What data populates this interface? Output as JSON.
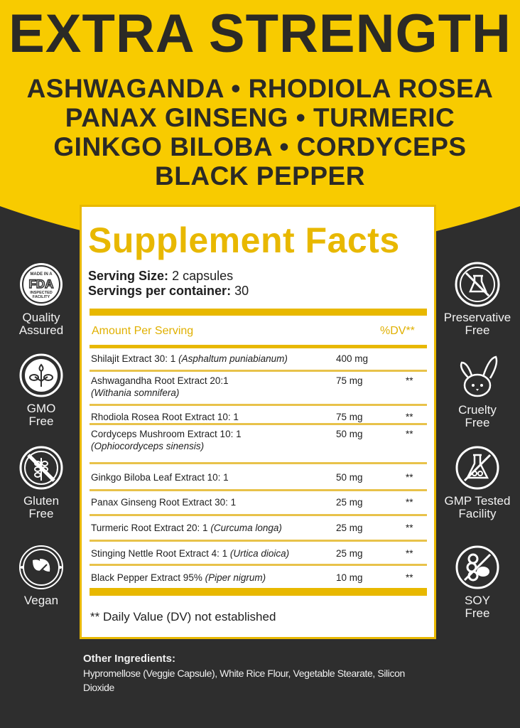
{
  "colors": {
    "yellow": "#f8cb00",
    "dark": "#2e2e2e",
    "accent": "#e8b800"
  },
  "header": {
    "title": "EXTRA STRENGTH",
    "lines": [
      "ASHWAGANDA • RHODIOLA ROSEA",
      "PANAX GINSENG • TURMERIC",
      "GINKGO BILOBA • CORDYCEPS",
      "BLACK PEPPER"
    ]
  },
  "facts": {
    "title": "Supplement Facts",
    "serving_size_label": "Serving Size:",
    "serving_size": "2 capsules",
    "servings_label": "Servings per container:",
    "servings": "30",
    "amount_header": "Amount Per Serving",
    "dv_header": "%DV**",
    "rows": [
      {
        "name": "Shilajit Extract 30: 1",
        "latin": "(Asphaltum puniabianum)",
        "amount": "400 mg",
        "dv": ""
      },
      {
        "name": "Ashwagandha Root Extract 20:1",
        "latin": "(Withania somnifera)",
        "amount": "75 mg",
        "dv": "**"
      },
      {
        "name": "Rhodiola Rosea Root Extract 10: 1",
        "latin": "",
        "amount": "75 mg",
        "dv": "**"
      },
      {
        "name": "Cordyceps Mushroom Extract 10: 1",
        "latin": "(Ophiocordyceps sinensis)",
        "amount": "50 mg",
        "dv": "**"
      },
      {
        "name": "Ginkgo Biloba Leaf Extract 10: 1",
        "latin": "",
        "amount": "50 mg",
        "dv": "**"
      },
      {
        "name": "Panax Ginseng Root Extract 30: 1",
        "latin": "",
        "amount": "25 mg",
        "dv": "**"
      },
      {
        "name": "Turmeric Root Extract 20: 1",
        "latin": "(Curcuma longa)",
        "amount": "25 mg",
        "dv": "**"
      },
      {
        "name": "Stinging Nettle Root Extract 4: 1",
        "latin": "(Urtica dioica)",
        "amount": "25 mg",
        "dv": "**"
      },
      {
        "name": "Black Pepper Extract 95%",
        "latin": "(Piper nigrum)",
        "amount": "10 mg",
        "dv": "**"
      }
    ],
    "footnote": "** Daily Value (DV) not established"
  },
  "badges_left": [
    {
      "icon": "fda-seal-icon",
      "label1": "Quality",
      "label2": "Assured",
      "seal_text": [
        "MADE IN A",
        "FDA",
        "INSPECTED",
        "FACILITY"
      ]
    },
    {
      "icon": "sprout-icon",
      "label1": "GMO",
      "label2": "Free"
    },
    {
      "icon": "no-wheat-icon",
      "label1": "Gluten",
      "label2": "Free"
    },
    {
      "icon": "leaf-icon",
      "label1": "Vegan",
      "label2": ""
    }
  ],
  "badges_right": [
    {
      "icon": "no-flask-icon",
      "label1": "Preservative",
      "label2": "Free"
    },
    {
      "icon": "bunny-icon",
      "label1": "Cruelty",
      "label2": "Free"
    },
    {
      "icon": "no-beaker-icon",
      "label1": "GMP Tested",
      "label2": "Facility"
    },
    {
      "icon": "no-soy-icon",
      "label1": "SOY",
      "label2": "Free"
    }
  ],
  "other": {
    "title": "Other Ingredients:",
    "text": "Hypromellose (Veggie Capsule), White Rice Flour, Vegetable Stearate, Silicon Dioxide"
  }
}
